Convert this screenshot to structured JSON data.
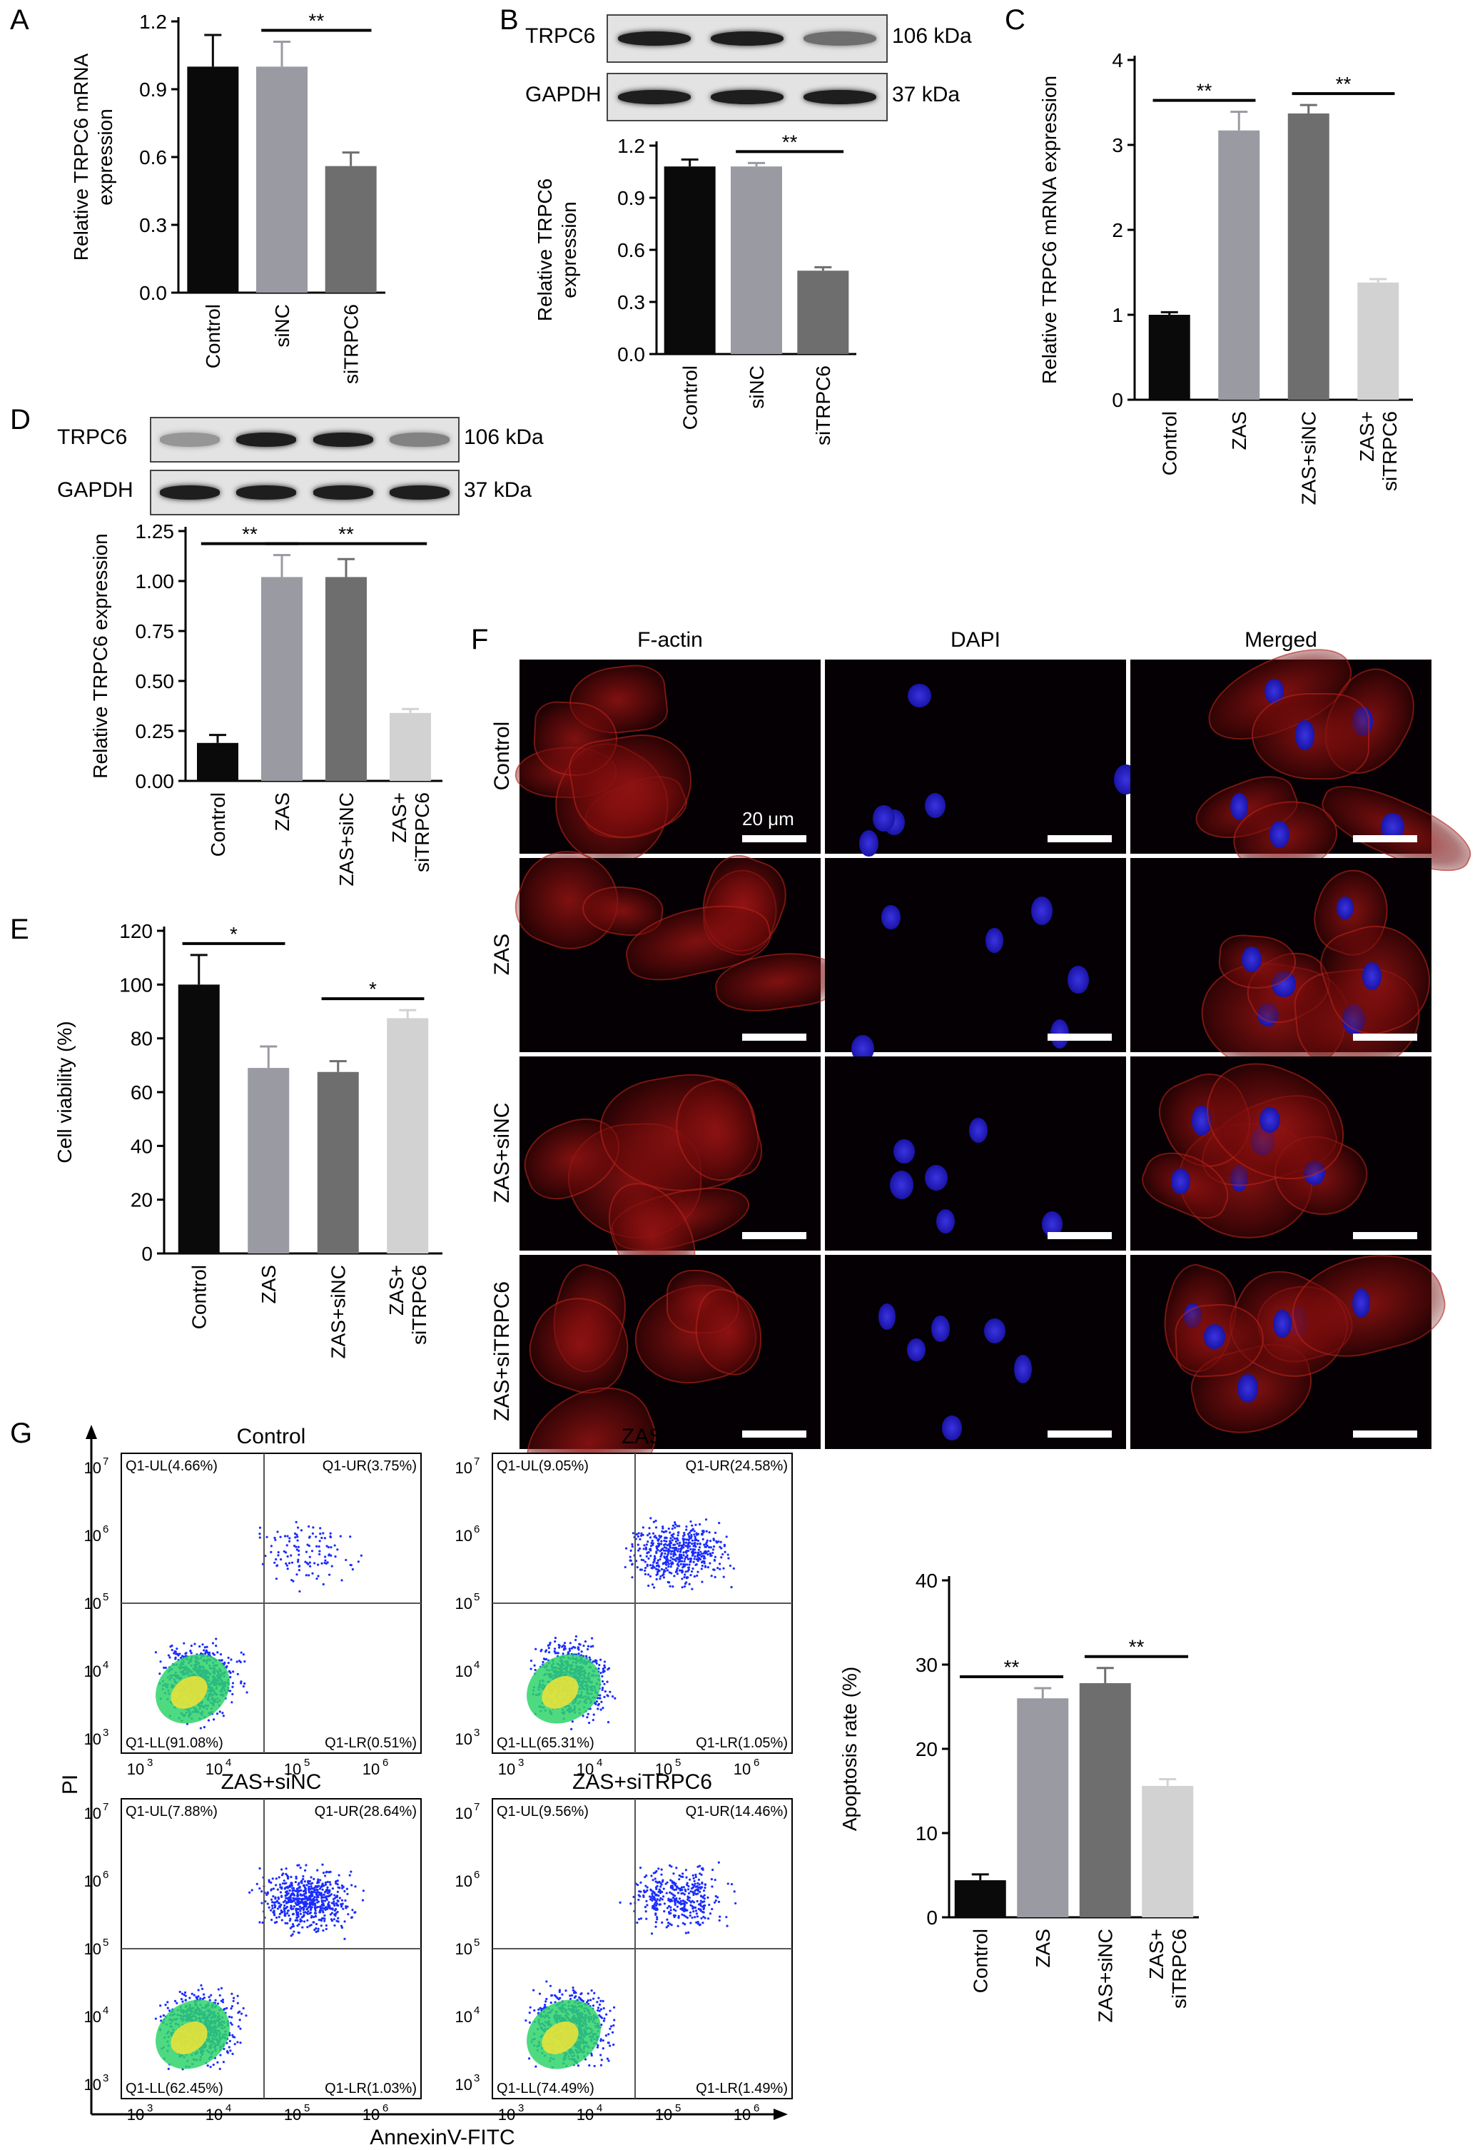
{
  "panels": {
    "A": {
      "label": "A",
      "chart_data": {
        "type": "bar",
        "categories": [
          "Control",
          "siNC",
          "siTRPC6"
        ],
        "values": [
          1.0,
          1.0,
          0.56
        ],
        "errors": [
          0.14,
          0.11,
          0.06
        ],
        "colors": [
          "#0a0a0a",
          "#9a9aa2",
          "#6e6e6e"
        ],
        "ylabel": "Relative TRPC6 mRNA\nexpression",
        "ylim": [
          0,
          1.2
        ],
        "yticks": [
          "0.0",
          "0.3",
          "0.6",
          "0.9",
          "1.2"
        ],
        "significance": [
          {
            "from": 1,
            "to": 2,
            "label": "**"
          }
        ]
      }
    },
    "B": {
      "label": "B",
      "blot": {
        "rows": [
          {
            "name": "TRPC6",
            "size": "106 kDa",
            "intensities": [
              0.95,
              0.95,
              0.55
            ]
          },
          {
            "name": "GAPDH",
            "size": "37 kDa",
            "intensities": [
              0.95,
              0.95,
              0.95
            ]
          }
        ]
      },
      "chart_data": {
        "type": "bar",
        "categories": [
          "Control",
          "siNC",
          "siTRPC6"
        ],
        "values": [
          1.08,
          1.08,
          0.48
        ],
        "errors": [
          0.04,
          0.02,
          0.02
        ],
        "colors": [
          "#0a0a0a",
          "#9a9aa2",
          "#6e6e6e"
        ],
        "ylabel": "Relative TRPC6\nexpression",
        "ylim": [
          0,
          1.2
        ],
        "yticks": [
          "0.0",
          "0.3",
          "0.6",
          "0.9",
          "1.2"
        ],
        "significance": [
          {
            "from": 1,
            "to": 2,
            "label": "**"
          }
        ]
      }
    },
    "C": {
      "label": "C",
      "chart_data": {
        "type": "bar",
        "categories": [
          "Control",
          "ZAS",
          "ZAS+siNC",
          "ZAS+\nsiTRPC6"
        ],
        "values": [
          1.0,
          3.17,
          3.37,
          1.38
        ],
        "errors": [
          0.03,
          0.22,
          0.1,
          0.04
        ],
        "colors": [
          "#0a0a0a",
          "#9a9aa2",
          "#6e6e6e",
          "#d2d2d2"
        ],
        "ylabel": "Relative TRPC6 mRNA expression",
        "ylim": [
          0,
          4
        ],
        "yticks": [
          "0",
          "1",
          "2",
          "3",
          "4"
        ],
        "significance": [
          {
            "from": 0,
            "to": 1,
            "label": "**"
          },
          {
            "from": 2,
            "to": 3,
            "label": "**"
          }
        ]
      }
    },
    "D": {
      "label": "D",
      "blot": {
        "rows": [
          {
            "name": "TRPC6",
            "size": "106 kDa",
            "intensities": [
              0.35,
              0.95,
              0.95,
              0.45
            ]
          },
          {
            "name": "GAPDH",
            "size": "37 kDa",
            "intensities": [
              0.95,
              0.95,
              0.95,
              0.95
            ]
          }
        ]
      },
      "chart_data": {
        "type": "bar",
        "categories": [
          "Control",
          "ZAS",
          "ZAS+siNC",
          "ZAS+\nsiTRPC6"
        ],
        "values": [
          0.19,
          1.02,
          1.02,
          0.34
        ],
        "errors": [
          0.04,
          0.11,
          0.09,
          0.02
        ],
        "colors": [
          "#0a0a0a",
          "#9a9aa2",
          "#6e6e6e",
          "#d2d2d2"
        ],
        "ylabel": "Relative TRPC6 expression",
        "ylim": [
          0,
          1.25
        ],
        "yticks": [
          "0.00",
          "0.25",
          "0.50",
          "0.75",
          "1.00",
          "1.25"
        ],
        "significance": [
          {
            "from": 0,
            "to": 1,
            "label": "**"
          },
          {
            "from": 1,
            "to": 3,
            "label": "**"
          }
        ]
      }
    },
    "E": {
      "label": "E",
      "chart_data": {
        "type": "bar",
        "categories": [
          "Control",
          "ZAS",
          "ZAS+siNC",
          "ZAS+\nsiTRPC6"
        ],
        "values": [
          100,
          69,
          67.5,
          87.5
        ],
        "errors": [
          11,
          8,
          4,
          3
        ],
        "colors": [
          "#0a0a0a",
          "#9a9aa2",
          "#6e6e6e",
          "#d2d2d2"
        ],
        "ylabel": "Cell viability (%)",
        "ylim": [
          0,
          120
        ],
        "yticks": [
          "0",
          "20",
          "40",
          "60",
          "80",
          "100",
          "120"
        ],
        "significance": [
          {
            "from": 0,
            "to": 1,
            "label": "*"
          },
          {
            "from": 2,
            "to": 3,
            "label": "*"
          }
        ]
      }
    },
    "F": {
      "label": "F",
      "columns": [
        "F-actin",
        "DAPI",
        "Merged"
      ],
      "rows": [
        "Control",
        "ZAS",
        "ZAS+siNC",
        "ZAS+siTRPC6"
      ],
      "scale_bar": "20 μm"
    },
    "G": {
      "label": "G",
      "flow": {
        "plots": [
          {
            "title": "Control",
            "ul": "Q1-UL(4.66%)",
            "ur": "Q1-UR(3.75%)",
            "ll": "Q1-LL(91.08%)",
            "lr": "Q1-LR(0.51%)"
          },
          {
            "title": "ZAS",
            "ul": "Q1-UL(9.05%)",
            "ur": "Q1-UR(24.58%)",
            "ll": "Q1-LL(65.31%)",
            "lr": "Q1-LR(1.05%)"
          },
          {
            "title": "ZAS+siNC",
            "ul": "Q1-UL(7.88%)",
            "ur": "Q1-UR(28.64%)",
            "ll": "Q1-LL(62.45%)",
            "lr": "Q1-LR(1.03%)"
          },
          {
            "title": "ZAS+siTRPC6",
            "ul": "Q1-UL(9.56%)",
            "ur": "Q1-UR(14.46%)",
            "ll": "Q1-LL(74.49%)",
            "lr": "Q1-LR(1.49%)"
          }
        ],
        "xlabel": "AnnexinV-FITC",
        "ylabel": "PI",
        "ticks": [
          "10",
          "3",
          "4",
          "5",
          "6",
          "7"
        ]
      },
      "chart_data": {
        "type": "bar",
        "categories": [
          "Control",
          "ZAS",
          "ZAS+siNC",
          "ZAS+\nsiTRPC6"
        ],
        "values": [
          4.4,
          26,
          27.8,
          15.6
        ],
        "errors": [
          0.7,
          1.2,
          1.8,
          0.8
        ],
        "colors": [
          "#0a0a0a",
          "#9a9aa2",
          "#6e6e6e",
          "#d2d2d2"
        ],
        "ylabel": "Apoptosis rate (%)",
        "ylim": [
          0,
          40
        ],
        "yticks": [
          "0",
          "10",
          "20",
          "30",
          "40"
        ],
        "significance": [
          {
            "from": 0,
            "to": 1,
            "label": "**"
          },
          {
            "from": 2,
            "to": 3,
            "label": "**"
          }
        ]
      }
    }
  }
}
